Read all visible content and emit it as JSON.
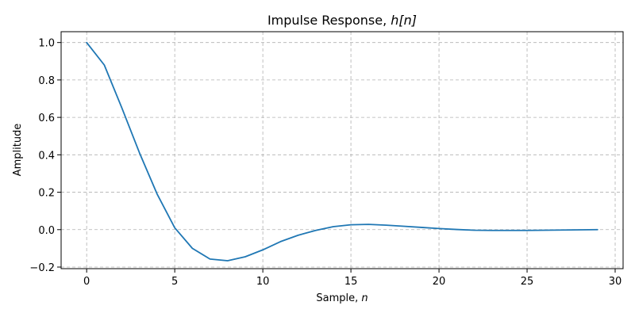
{
  "chart_data": {
    "type": "line",
    "title": "Impulse Response, h[n]",
    "title_prefix": "Impulse Response, ",
    "title_math": "h[n]",
    "xlabel": "Sample, n",
    "xlabel_prefix": "Sample, ",
    "xlabel_math": "n",
    "ylabel": "Amplitude",
    "xlim": [
      -1.45,
      30.45
    ],
    "ylim": [
      -0.2085,
      1.0579
    ],
    "xticks": [
      0,
      5,
      10,
      15,
      20,
      25,
      30
    ],
    "yticks": [
      -0.2,
      0.0,
      0.2,
      0.4,
      0.6,
      0.8,
      1.0
    ],
    "ytick_labels": [
      "−0.2",
      "0.0",
      "0.2",
      "0.4",
      "0.6",
      "0.8",
      "1.0"
    ],
    "grid": true,
    "grid_style": "dashed",
    "line_color": "#1f77b4",
    "x": [
      0,
      1,
      2,
      3,
      4,
      5,
      6,
      7,
      8,
      9,
      10,
      11,
      12,
      13,
      14,
      15,
      16,
      17,
      18,
      19,
      20,
      21,
      22,
      23,
      24,
      25,
      26,
      27,
      28,
      29
    ],
    "series": [
      {
        "values": [
          1.0,
          0.88,
          0.65,
          0.41,
          0.19,
          0.01,
          -0.1,
          -0.157,
          -0.166,
          -0.145,
          -0.108,
          -0.064,
          -0.03,
          -0.004,
          0.016,
          0.026,
          0.028,
          0.024,
          0.018,
          0.012,
          0.006,
          0.001,
          -0.003,
          -0.004,
          -0.004,
          -0.004,
          -0.003,
          -0.002,
          -0.001,
          0.0
        ]
      }
    ]
  }
}
